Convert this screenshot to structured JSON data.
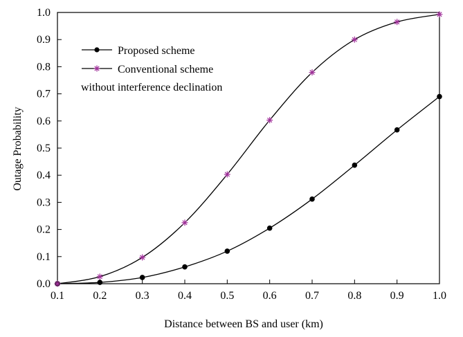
{
  "chart_data": {
    "type": "line",
    "title": "",
    "xlabel": "Distance between BS and user (km)",
    "ylabel": "Outage Probability",
    "xlim": [
      0.1,
      1.0
    ],
    "ylim": [
      0.0,
      1.0
    ],
    "x_ticks": [
      "0.1",
      "0.2",
      "0.3",
      "0.4",
      "0.5",
      "0.6",
      "0.7",
      "0.8",
      "0.9",
      "1.0"
    ],
    "y_ticks": [
      "0.0",
      "0.1",
      "0.2",
      "0.3",
      "0.4",
      "0.5",
      "0.6",
      "0.7",
      "0.8",
      "0.9",
      "1.0"
    ],
    "grid": false,
    "legend_position": "top-left",
    "x": [
      0.1,
      0.2,
      0.3,
      0.4,
      0.5,
      0.6,
      0.7,
      0.8,
      0.9,
      1.0
    ],
    "series": [
      {
        "name": "Proposed scheme",
        "marker": "circle",
        "color": "#000000",
        "values": [
          0.0,
          0.005,
          0.023,
          0.062,
          0.12,
          0.205,
          0.312,
          0.437,
          0.567,
          0.69
        ]
      },
      {
        "name": "Conventional scheme",
        "marker": "asterisk",
        "color": "#a0309a",
        "values": [
          0.0,
          0.026,
          0.097,
          0.225,
          0.403,
          0.603,
          0.779,
          0.9,
          0.965,
          0.993
        ]
      }
    ],
    "legend_note": "without interference declination"
  }
}
